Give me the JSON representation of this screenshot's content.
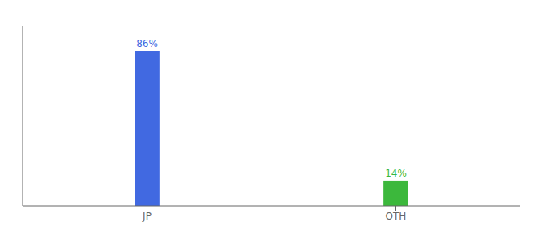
{
  "chart_data": {
    "type": "bar",
    "categories": [
      "JP",
      "OTH"
    ],
    "values": [
      86,
      14
    ],
    "value_labels": [
      "86%",
      "14%"
    ],
    "colors": [
      "#4169e1",
      "#3cb83c"
    ],
    "ylim": [
      0,
      100
    ],
    "tick_labels": "x",
    "data_labels": true
  }
}
